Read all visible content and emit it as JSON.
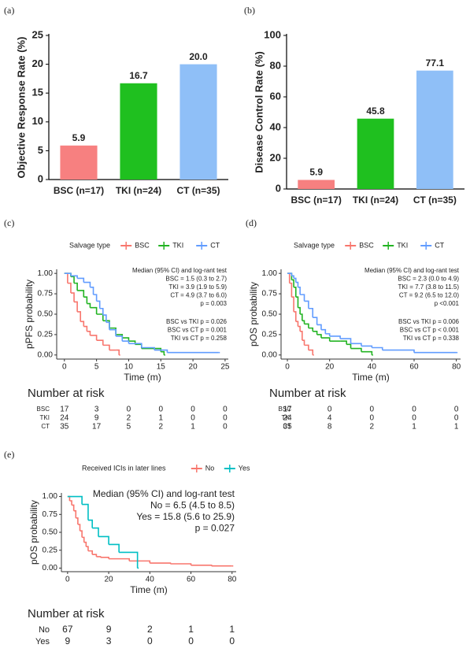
{
  "chart_data": [
    {
      "type": "bar",
      "panel": "(a)",
      "ylabel": "Objective Response Rate (%)",
      "categories": [
        "BSC (n=17)",
        "TKI (n=24)",
        "CT (n=35)"
      ],
      "values": [
        5.9,
        16.7,
        20
      ],
      "value_labels": [
        "5.9",
        "16.7",
        "20.0"
      ],
      "colors": [
        "#f78080",
        "#1fc01f",
        "#8fbff7"
      ],
      "ylim": [
        0,
        25
      ],
      "yticks": [
        0,
        5,
        10,
        15,
        20,
        25
      ]
    },
    {
      "type": "bar",
      "panel": "(b)",
      "ylabel": "Disease Control Rate (%)",
      "categories": [
        "BSC (n=17)",
        "TKI (n=24)",
        "CT (n=35)"
      ],
      "values": [
        5.9,
        45.8,
        77.1
      ],
      "colors": [
        "#f78080",
        "#1fc01f",
        "#8fbff7"
      ],
      "ylim": [
        0,
        100
      ],
      "yticks": [
        0,
        20,
        40,
        60,
        80,
        100
      ]
    },
    {
      "type": "km",
      "panel": "(c)",
      "legend_title": "Salvage type",
      "xlabel": "Time (m)",
      "ylabel": "pPFS probability",
      "xlim": [
        -1.2,
        25.5
      ],
      "xticks": [
        0,
        5,
        10,
        15,
        20,
        25
      ],
      "ylim": [
        -0.05,
        1.05
      ],
      "yticks": [
        {
          "value": 0,
          "label": "0.00"
        },
        {
          "value": 0.25,
          "label": "0.25"
        },
        {
          "value": 0.5,
          "label": "0.50"
        },
        {
          "value": 0.75,
          "label": "0.75"
        },
        {
          "value": 1,
          "label": "1.00"
        }
      ],
      "series": [
        {
          "name": "BSC",
          "color": "#f8766d",
          "x": [
            0,
            0.5,
            1,
            1.5,
            2,
            2.5,
            3,
            3.5,
            4,
            5,
            6,
            7,
            8,
            8.5
          ],
          "values": [
            1,
            0.88,
            0.76,
            0.65,
            0.53,
            0.41,
            0.35,
            0.29,
            0.24,
            0.18,
            0.12,
            0.06,
            0.06,
            0
          ]
        },
        {
          "name": "TKI",
          "color": "#22b322",
          "x": [
            0,
            1,
            1.5,
            2,
            3,
            3.5,
            4,
            5,
            6,
            7,
            8,
            9,
            10,
            11,
            12,
            15,
            15.5
          ],
          "values": [
            1,
            0.96,
            0.88,
            0.79,
            0.71,
            0.63,
            0.58,
            0.5,
            0.42,
            0.33,
            0.25,
            0.21,
            0.17,
            0.13,
            0.08,
            0.04,
            0
          ]
        },
        {
          "name": "CT",
          "color": "#619cff",
          "x": [
            0,
            1,
            2,
            3,
            4,
            4.5,
            5,
            5.5,
            6,
            6.5,
            7,
            8,
            9,
            10,
            12,
            14,
            16,
            24
          ],
          "values": [
            1,
            0.97,
            0.94,
            0.89,
            0.83,
            0.74,
            0.66,
            0.57,
            0.49,
            0.4,
            0.31,
            0.23,
            0.17,
            0.14,
            0.09,
            0.06,
            0.03,
            0.03
          ]
        }
      ],
      "annotation": [
        "Median (95% CI) and log-rant test",
        "BSC = 1.5 (0.3 to 2.7)",
        "TKI = 3.9 (1.9 to 5.9)",
        "CT = 4.9 (3.7 to 6.0)",
        "p = 0.003"
      ],
      "comparisons": [
        "BSC vs TKI  p = 0.026",
        "BSC  vs CT  p = 0.001",
        "TKI vs CT  p = 0.258"
      ],
      "risk_table": {
        "title": "Number at risk",
        "rows": [
          {
            "name": "BSC",
            "values": [
              17,
              3,
              0,
              0,
              0,
              0
            ]
          },
          {
            "name": "TKI",
            "values": [
              24,
              9,
              2,
              1,
              0,
              0
            ]
          },
          {
            "name": "CT",
            "values": [
              35,
              17,
              5,
              2,
              1,
              0
            ]
          }
        ]
      }
    },
    {
      "type": "km",
      "panel": "(d)",
      "legend_title": "Salvage type",
      "xlabel": "Time (m)",
      "ylabel": "pOS probability",
      "xlim": [
        -3,
        82
      ],
      "xticks": [
        0,
        20,
        40,
        60,
        80
      ],
      "ylim": [
        -0.05,
        1.05
      ],
      "yticks": [
        {
          "value": 0,
          "label": "0.00"
        },
        {
          "value": 0.25,
          "label": "0.25"
        },
        {
          "value": 0.5,
          "label": "0.50"
        },
        {
          "value": 0.75,
          "label": "0.75"
        },
        {
          "value": 1,
          "label": "1.00"
        }
      ],
      "series": [
        {
          "name": "BSC",
          "color": "#f8766d",
          "x": [
            0,
            1,
            2,
            3,
            4,
            5,
            6,
            7,
            8,
            10,
            12
          ],
          "values": [
            1,
            0.88,
            0.71,
            0.53,
            0.41,
            0.35,
            0.29,
            0.18,
            0.12,
            0.06,
            0
          ]
        },
        {
          "name": "TKI",
          "color": "#22b322",
          "x": [
            0,
            2,
            3,
            4,
            5,
            6,
            7,
            8,
            10,
            12,
            14,
            16,
            20,
            25,
            28,
            30,
            35,
            40
          ],
          "values": [
            1,
            0.92,
            0.83,
            0.71,
            0.58,
            0.5,
            0.42,
            0.38,
            0.33,
            0.29,
            0.25,
            0.21,
            0.17,
            0.17,
            0.13,
            0.08,
            0.04,
            0
          ]
        },
        {
          "name": "CT",
          "color": "#619cff",
          "x": [
            0,
            2,
            3,
            4,
            5,
            6,
            8,
            10,
            12,
            14,
            16,
            18,
            20,
            25,
            30,
            35,
            40,
            45,
            60,
            80
          ],
          "values": [
            1,
            0.97,
            0.94,
            0.89,
            0.83,
            0.74,
            0.66,
            0.57,
            0.46,
            0.37,
            0.31,
            0.26,
            0.23,
            0.2,
            0.14,
            0.11,
            0.09,
            0.06,
            0.03,
            0.03
          ]
        }
      ],
      "annotation": [
        "Median (95% CI) and log-rant test",
        "BSC = 2.3 (0.0 to 4.9)",
        "TKI = 7.7 (3.8 to 11.5)",
        "CT = 9.2 (6.5 to 12.0)",
        "p <0.001"
      ],
      "comparisons": [
        "BSC vs TKI  p = 0.006",
        "BSC  vs CT  p < 0.001",
        "TKI vs CT  p = 0.338"
      ],
      "risk_table": {
        "title": "Number at risk",
        "rows": [
          {
            "name": "BSC",
            "values": [
              17,
              0,
              0,
              0,
              0
            ]
          },
          {
            "name": "TKI",
            "values": [
              24,
              4,
              0,
              0,
              0
            ]
          },
          {
            "name": "CT",
            "values": [
              35,
              8,
              2,
              1,
              1
            ]
          }
        ]
      }
    },
    {
      "type": "km",
      "panel": "(e)",
      "legend_title": "Received ICIs in later lines",
      "xlabel": "Time (m)",
      "ylabel": "pOS probability",
      "xlim": [
        -3,
        82
      ],
      "xticks": [
        0,
        20,
        40,
        60,
        80
      ],
      "ylim": [
        -0.05,
        1.05
      ],
      "yticks": [
        {
          "value": 0,
          "label": "0.00"
        },
        {
          "value": 0.25,
          "label": "0.25"
        },
        {
          "value": 0.5,
          "label": "0.50"
        },
        {
          "value": 0.75,
          "label": "0.75"
        },
        {
          "value": 1,
          "label": "1.00"
        }
      ],
      "series": [
        {
          "name": "No",
          "color": "#f8766d",
          "x": [
            0,
            1,
            2,
            3,
            4,
            5,
            6,
            7,
            8,
            9,
            10,
            12,
            14,
            16,
            20,
            30,
            40,
            50,
            60,
            70,
            80
          ],
          "values": [
            1,
            0.94,
            0.88,
            0.8,
            0.7,
            0.61,
            0.52,
            0.43,
            0.36,
            0.3,
            0.24,
            0.19,
            0.16,
            0.15,
            0.13,
            0.1,
            0.07,
            0.06,
            0.04,
            0.03,
            0.03
          ]
        },
        {
          "name": "Yes",
          "color": "#00bfc4",
          "x": [
            0,
            7,
            10,
            12,
            15,
            20,
            25,
            33,
            34
          ],
          "values": [
            1,
            0.89,
            0.67,
            0.56,
            0.44,
            0.33,
            0.22,
            0.22,
            0
          ]
        }
      ],
      "annotation": [
        "Median (95% CI) and log-rant test",
        "No = 6.5 (4.5 to 8.5)",
        "Yes = 15.8 (5.6 to 25.9)",
        "p = 0.027"
      ],
      "risk_table": {
        "title": "Number at risk",
        "rows": [
          {
            "name": "No",
            "values": [
              67,
              9,
              2,
              1,
              1
            ]
          },
          {
            "name": "Yes",
            "values": [
              9,
              3,
              0,
              0,
              0
            ]
          }
        ]
      }
    }
  ]
}
